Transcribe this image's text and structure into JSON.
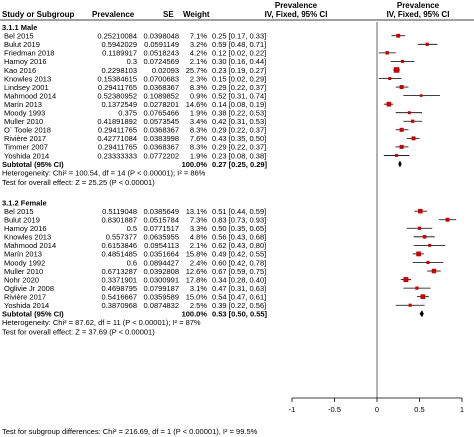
{
  "header": {
    "col_study": "Study or Subgroup",
    "col_prevalence": "Prevalence",
    "col_se": "SE",
    "col_weight": "Weight",
    "col_ci_top": "Prevalence",
    "col_ci_bottom": "IV, Fixed, 95% CI",
    "col_plot_top": "Prevalence",
    "col_plot_bottom": "IV, Fixed, 95% CI"
  },
  "chart_data": {
    "type": "forest",
    "xlim": [
      -1,
      1
    ],
    "x_ticks": [
      "-1",
      "-0.5",
      "0",
      "0.5",
      "1"
    ],
    "colors": {
      "point": "#cc0000",
      "ci_line": "#000000",
      "diamond": "#000000"
    },
    "subgroups": [
      {
        "title": "3.1.1 Male",
        "studies": [
          {
            "study": "Bel 2015",
            "prevalence": "0.25210084",
            "se": "0.0398048",
            "weight": "7.1%",
            "ci_text": "0.25 [0.17, 0.33]",
            "est": 0.25,
            "lo": 0.17,
            "hi": 0.33
          },
          {
            "study": "Bulut 2019",
            "prevalence": "0.5942029",
            "se": "0.0591149",
            "weight": "3.2%",
            "ci_text": "0.59 [0.48, 0.71]",
            "est": 0.59,
            "lo": 0.48,
            "hi": 0.71
          },
          {
            "study": "Friedman 2018",
            "prevalence": "0.1189917",
            "se": "0.0518243",
            "weight": "4.2%",
            "ci_text": "0.12 [0.02, 0.22]",
            "est": 0.12,
            "lo": 0.02,
            "hi": 0.22
          },
          {
            "study": "Hamoy 2016",
            "prevalence": "0.3",
            "se": "0.0724569",
            "weight": "2.1%",
            "ci_text": "0.30 [0.16, 0.44]",
            "est": 0.3,
            "lo": 0.16,
            "hi": 0.44
          },
          {
            "study": "Kao 2016",
            "prevalence": "0.2298103",
            "se": "0.02093",
            "weight": "25.7%",
            "ci_text": "0.23 [0.19, 0.27]",
            "est": 0.23,
            "lo": 0.19,
            "hi": 0.27
          },
          {
            "study": "Knowles 2013",
            "prevalence": "0.15384615",
            "se": "0.0700683",
            "weight": "2.3%",
            "ci_text": "0.15 [0.02, 0.29]",
            "est": 0.15,
            "lo": 0.02,
            "hi": 0.29
          },
          {
            "study": "Lindsey 2001",
            "prevalence": "0.29411765",
            "se": "0.0368367",
            "weight": "8.3%",
            "ci_text": "0.29 [0.22, 0.37]",
            "est": 0.29,
            "lo": 0.22,
            "hi": 0.37
          },
          {
            "study": "Mahmood 2014",
            "prevalence": "0.52380952",
            "se": "0.1089852",
            "weight": "0.9%",
            "ci_text": "0.52 [0.31, 0.74]",
            "est": 0.52,
            "lo": 0.31,
            "hi": 0.74
          },
          {
            "study": "Marín 2013",
            "prevalence": "0.1372549",
            "se": "0.0278201",
            "weight": "14.6%",
            "ci_text": "0.14 [0.08, 0.19]",
            "est": 0.14,
            "lo": 0.08,
            "hi": 0.19
          },
          {
            "study": "Moody 1993",
            "prevalence": "0.375",
            "se": "0.0765466",
            "weight": "1.9%",
            "ci_text": "0.38 [0.22, 0.53]",
            "est": 0.38,
            "lo": 0.22,
            "hi": 0.53
          },
          {
            "study": "Muller 2010",
            "prevalence": "0.41891892",
            "se": "0.0573545",
            "weight": "3.4%",
            "ci_text": "0.42 [0.31, 0.53]",
            "est": 0.42,
            "lo": 0.31,
            "hi": 0.53
          },
          {
            "study": "O´ Toole 2018",
            "prevalence": "0.29411765",
            "se": "0.0368367",
            "weight": "8.3%",
            "ci_text": "0.29 [0.22, 0.37]",
            "est": 0.29,
            "lo": 0.22,
            "hi": 0.37
          },
          {
            "study": "Rivière 2017",
            "prevalence": "0.42771084",
            "se": "0.0383998",
            "weight": "7.6%",
            "ci_text": "0.43 [0.35, 0.50]",
            "est": 0.43,
            "lo": 0.35,
            "hi": 0.5
          },
          {
            "study": "Timmer 2007",
            "prevalence": "0.29411765",
            "se": "0.0368367",
            "weight": "8.3%",
            "ci_text": "0.29 [0.22, 0.37]",
            "est": 0.29,
            "lo": 0.22,
            "hi": 0.37
          },
          {
            "study": "Yoshida 2014",
            "prevalence": "0.23333333",
            "se": "0.0772202",
            "weight": "1.9%",
            "ci_text": "0.23 [0.08, 0.38]",
            "est": 0.23,
            "lo": 0.08,
            "hi": 0.38
          }
        ],
        "subtotal": {
          "label": "Subtotal (95% CI)",
          "weight": "100.0%",
          "ci_text": "0.27 [0.25, 0.29]",
          "est": 0.27,
          "lo": 0.25,
          "hi": 0.29
        },
        "heterogeneity": "Heterogeneity: Chi² = 100.54, df = 14 (P < 0.00001); I² = 86%",
        "overall_effect": "Test for overall effect: Z = 25.25 (P < 0.00001)"
      },
      {
        "title": "3.1.2 Female",
        "studies": [
          {
            "study": "Bel 2015",
            "prevalence": "0.5119048",
            "se": "0.0385649",
            "weight": "13.1%",
            "ci_text": "0.51 [0.44, 0.59]",
            "est": 0.51,
            "lo": 0.44,
            "hi": 0.59
          },
          {
            "study": "Bulut 2019",
            "prevalence": "0.8301887",
            "se": "0.0515784",
            "weight": "7.3%",
            "ci_text": "0.83 [0.73, 0.93]",
            "est": 0.83,
            "lo": 0.73,
            "hi": 0.93
          },
          {
            "study": "Hamoy 2016",
            "prevalence": "0.5",
            "se": "0.0771517",
            "weight": "3.3%",
            "ci_text": "0.50 [0.35, 0.65]",
            "est": 0.5,
            "lo": 0.35,
            "hi": 0.65
          },
          {
            "study": "Knowles 2013",
            "prevalence": "0.557377",
            "se": "0.0635955",
            "weight": "4.8%",
            "ci_text": "0.56 [0.43, 0.68]",
            "est": 0.56,
            "lo": 0.43,
            "hi": 0.68
          },
          {
            "study": "Mahmood 2014",
            "prevalence": "0.6153846",
            "se": "0.0954113",
            "weight": "2.1%",
            "ci_text": "0.62 [0.43, 0.80]",
            "est": 0.62,
            "lo": 0.43,
            "hi": 0.8
          },
          {
            "study": "Marín 2013",
            "prevalence": "0.4851485",
            "se": "0.0351664",
            "weight": "15.8%",
            "ci_text": "0.49 [0.42, 0.55]",
            "est": 0.49,
            "lo": 0.42,
            "hi": 0.55
          },
          {
            "study": "Moody 1992",
            "prevalence": "0.6",
            "se": "0.0894427",
            "weight": "2.4%",
            "ci_text": "0.60 [0.42, 0.78]",
            "est": 0.6,
            "lo": 0.42,
            "hi": 0.78
          },
          {
            "study": "Muller 2010",
            "prevalence": "0.6713287",
            "se": "0.0392808",
            "weight": "12.6%",
            "ci_text": "0.67 [0.59, 0.75]",
            "est": 0.67,
            "lo": 0.59,
            "hi": 0.75
          },
          {
            "study": "Nohr 2020",
            "prevalence": "0.3371901",
            "se": "0.0300991",
            "weight": "17.8%",
            "ci_text": "0.34 [0.28, 0.40]",
            "est": 0.34,
            "lo": 0.28,
            "hi": 0.4
          },
          {
            "study": "Oglivie Jr 2008",
            "prevalence": "0.4698795",
            "se": "0.0799187",
            "weight": "3.1%",
            "ci_text": "0.47 [0.31, 0.63]",
            "est": 0.47,
            "lo": 0.31,
            "hi": 0.63
          },
          {
            "study": "Rivière 2017",
            "prevalence": "0.5416667",
            "se": "0.0359589",
            "weight": "15.0%",
            "ci_text": "0.54 [0.47, 0.61]",
            "est": 0.54,
            "lo": 0.47,
            "hi": 0.61
          },
          {
            "study": "Yoshida 2014",
            "prevalence": "0.3870968",
            "se": "0.0874832",
            "weight": "2.5%",
            "ci_text": "0.39 [0.22, 0.56]",
            "est": 0.39,
            "lo": 0.22,
            "hi": 0.56
          }
        ],
        "subtotal": {
          "label": "Subtotal (95% CI)",
          "weight": "100.0%",
          "ci_text": "0.53 [0.50, 0.55]",
          "est": 0.53,
          "lo": 0.5,
          "hi": 0.55
        },
        "heterogeneity": "Heterogeneity: Chi² = 87.62, df = 11 (P < 0.00001); I² = 87%",
        "overall_effect": "Test for overall effect: Z = 37.69 (P < 0.00001)"
      }
    ],
    "footer": "Test for subgroup differences: Chi² = 216.69, df = 1 (P < 0.00001), I² = 99.5%"
  }
}
